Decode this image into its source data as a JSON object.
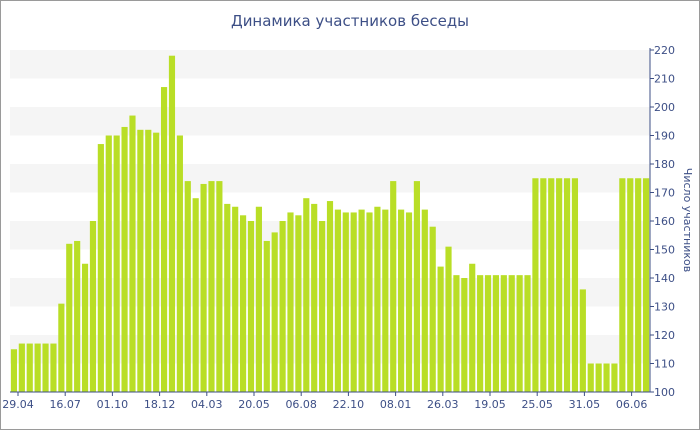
{
  "chart_data": {
    "type": "bar",
    "title": "Динамика участников беседы",
    "xlabel": "",
    "ylabel": "Число участников",
    "ylim": [
      100,
      220
    ],
    "y_ticks": [
      100,
      110,
      120,
      130,
      140,
      150,
      160,
      170,
      180,
      190,
      200,
      210,
      220
    ],
    "x_tick_labels": [
      "29.04",
      "16.07",
      "01.10",
      "18.12",
      "04.03",
      "20.05",
      "06.08",
      "22.10",
      "08.01",
      "26.03",
      "19.05",
      "25.05",
      "31.05",
      "06.06"
    ],
    "y_axis_position": "right",
    "grid": "horizontal bands",
    "bar_color": "#b9de26",
    "values": [
      115,
      117,
      117,
      117,
      117,
      117,
      131,
      152,
      153,
      145,
      160,
      187,
      190,
      190,
      193,
      197,
      192,
      192,
      191,
      207,
      218,
      190,
      174,
      168,
      173,
      174,
      174,
      166,
      165,
      162,
      160,
      165,
      153,
      156,
      160,
      163,
      162,
      168,
      166,
      160,
      167,
      164,
      163,
      163,
      164,
      163,
      165,
      164,
      174,
      164,
      163,
      174,
      164,
      158,
      144,
      151,
      141,
      140,
      145,
      141,
      141,
      141,
      141,
      141,
      141,
      141,
      175,
      175,
      175,
      175,
      175,
      175,
      136,
      110,
      110,
      110,
      110,
      175,
      175,
      175,
      175
    ]
  }
}
